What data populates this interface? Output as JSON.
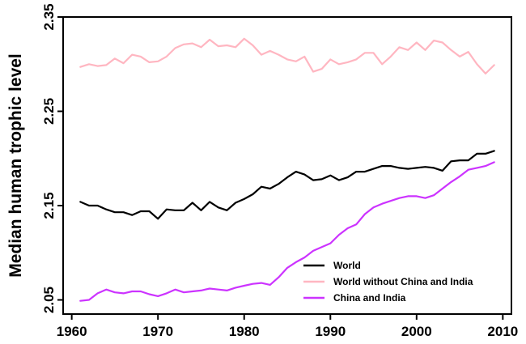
{
  "chart_data": {
    "type": "line",
    "title": "",
    "xlabel": "",
    "ylabel": "Median human trophic level",
    "xlim": [
      1959,
      2011
    ],
    "ylim": [
      2.035,
      2.35
    ],
    "xticks": [
      1960,
      1970,
      1980,
      1990,
      2000,
      2010
    ],
    "yticks": [
      2.05,
      2.15,
      2.25,
      2.35
    ],
    "ytick_labels": [
      "2.05",
      "2.15",
      "2.25",
      "2.35"
    ],
    "xtick_labels": [
      "1960",
      "1970",
      "1980",
      "1990",
      "2000",
      "2010"
    ],
    "grid": false,
    "legend_position": "bottom-right",
    "x": [
      1961,
      1962,
      1963,
      1964,
      1965,
      1966,
      1967,
      1968,
      1969,
      1970,
      1971,
      1972,
      1973,
      1974,
      1975,
      1976,
      1977,
      1978,
      1979,
      1980,
      1981,
      1982,
      1983,
      1984,
      1985,
      1986,
      1987,
      1988,
      1989,
      1990,
      1991,
      1992,
      1993,
      1994,
      1995,
      1996,
      1997,
      1998,
      1999,
      2000,
      2001,
      2002,
      2003,
      2004,
      2005,
      2006,
      2007,
      2008,
      2009
    ],
    "series": [
      {
        "name": "World",
        "color": "#000000",
        "values": [
          2.154,
          2.15,
          2.15,
          2.146,
          2.143,
          2.143,
          2.14,
          2.144,
          2.144,
          2.136,
          2.146,
          2.145,
          2.145,
          2.153,
          2.145,
          2.154,
          2.148,
          2.145,
          2.153,
          2.157,
          2.162,
          2.17,
          2.168,
          2.173,
          2.18,
          2.186,
          2.183,
          2.177,
          2.178,
          2.182,
          2.177,
          2.18,
          2.186,
          2.186,
          2.189,
          2.192,
          2.192,
          2.19,
          2.189,
          2.19,
          2.191,
          2.19,
          2.187,
          2.197,
          2.198,
          2.198,
          2.205,
          2.205,
          2.208
        ]
      },
      {
        "name": "World without China and India",
        "color": "#ffb6c1",
        "values": [
          2.297,
          2.3,
          2.298,
          2.299,
          2.306,
          2.301,
          2.31,
          2.308,
          2.302,
          2.303,
          2.308,
          2.317,
          2.321,
          2.322,
          2.318,
          2.326,
          2.319,
          2.32,
          2.318,
          2.327,
          2.32,
          2.31,
          2.314,
          2.31,
          2.305,
          2.303,
          2.308,
          2.292,
          2.295,
          2.305,
          2.3,
          2.302,
          2.305,
          2.312,
          2.312,
          2.3,
          2.308,
          2.318,
          2.315,
          2.323,
          2.315,
          2.325,
          2.323,
          2.315,
          2.308,
          2.313,
          2.3,
          2.29,
          2.299
        ]
      },
      {
        "name": "China and India",
        "color": "#cc33ff",
        "values": [
          2.049,
          2.05,
          2.057,
          2.061,
          2.058,
          2.057,
          2.059,
          2.059,
          2.056,
          2.054,
          2.057,
          2.061,
          2.058,
          2.059,
          2.06,
          2.062,
          2.061,
          2.06,
          2.063,
          2.065,
          2.067,
          2.068,
          2.066,
          2.074,
          2.084,
          2.09,
          2.095,
          2.102,
          2.106,
          2.11,
          2.119,
          2.126,
          2.13,
          2.141,
          2.148,
          2.152,
          2.155,
          2.158,
          2.16,
          2.16,
          2.158,
          2.161,
          2.168,
          2.175,
          2.181,
          2.188,
          2.19,
          2.192,
          2.196
        ]
      }
    ]
  }
}
